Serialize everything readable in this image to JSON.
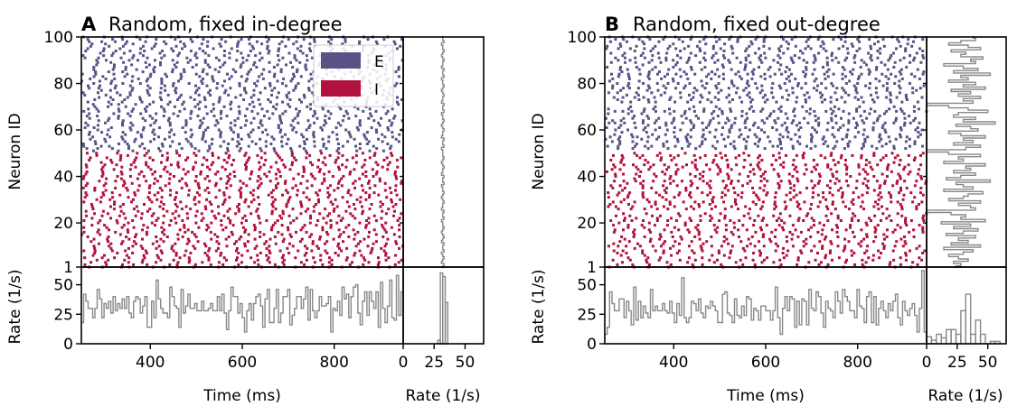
{
  "figure": {
    "colors": {
      "E": "#595287",
      "I": "#b1123d",
      "rate_line": "#888888"
    }
  },
  "chart_data": [
    {
      "type": "scatter",
      "panel": "A",
      "letter": "A",
      "title": "Random, fixed in-degree",
      "raster": {
        "xlabel": "Time (ms)",
        "ylabel": "Neuron ID",
        "xlim": [
          250,
          950
        ],
        "ylim": [
          1,
          100
        ],
        "xticks": [
          400,
          600,
          800
        ],
        "yticks": [
          1,
          20,
          40,
          60,
          80,
          100
        ],
        "populations": [
          {
            "name": "E",
            "neurons": [
              51,
              100
            ]
          },
          {
            "name": "I",
            "neurons": [
              1,
              50
            ]
          }
        ],
        "mean_rate_per_neuron": [
          32,
          33,
          31,
          32,
          33,
          32,
          31,
          33,
          32,
          32,
          33,
          31,
          32,
          33,
          32,
          31,
          32,
          33,
          32,
          32,
          31,
          33,
          32,
          32,
          33,
          31,
          32,
          32,
          33,
          32,
          31,
          32,
          33,
          32,
          32,
          31,
          33,
          32,
          32,
          33,
          31,
          32,
          32,
          33,
          32,
          31,
          32,
          33,
          32,
          32,
          32,
          31,
          33,
          32,
          32,
          33,
          31,
          32,
          32,
          33,
          32,
          31,
          32,
          33,
          32,
          32,
          31,
          33,
          32,
          32,
          33,
          31,
          32,
          32,
          33,
          32,
          31,
          32,
          33,
          32,
          32,
          31,
          33,
          32,
          32,
          33,
          31,
          32,
          32,
          33,
          32,
          31,
          32,
          33,
          32,
          32,
          31,
          33,
          32,
          32
        ]
      },
      "time_rate": {
        "ylabel": "Rate (1/s)",
        "ylim": [
          0,
          65
        ],
        "yticks": [
          0,
          25,
          50
        ],
        "bin_ms": 5,
        "values": [
          18,
          42,
          36,
          30,
          30,
          22,
          30,
          46,
          38,
          22,
          34,
          30,
          36,
          26,
          40,
          28,
          34,
          30,
          38,
          30,
          40,
          26,
          22,
          36,
          40,
          38,
          26,
          32,
          40,
          14,
          14,
          36,
          22,
          54,
          38,
          30,
          26,
          26,
          22,
          48,
          40,
          32,
          30,
          14,
          46,
          26,
          32,
          42,
          30,
          30,
          34,
          28,
          28,
          36,
          28,
          28,
          30,
          34,
          28,
          28,
          40,
          28,
          42,
          26,
          12,
          28,
          48,
          40,
          40,
          26,
          34,
          22,
          10,
          28,
          34,
          20,
          34,
          40,
          42,
          32,
          14,
          38,
          46,
          18,
          18,
          30,
          46,
          18,
          26,
          40,
          40,
          46,
          16,
          24,
          30,
          40,
          40,
          30,
          38,
          48,
          20,
          46,
          28,
          22,
          28,
          40,
          32,
          32,
          34,
          40,
          10,
          30,
          28,
          36,
          24,
          48,
          38,
          42,
          22,
          40,
          48,
          50,
          26,
          16,
          36,
          44,
          24,
          44,
          36,
          30,
          44,
          14,
          52,
          30,
          18,
          32,
          54,
          22,
          20,
          58,
          24,
          44
        ]
      },
      "rate_hist": {
        "xlabel": "Rate (1/s)",
        "xlim": [
          0,
          65
        ],
        "xticks": [
          0,
          25,
          50
        ],
        "bin_edges": [
          26,
          28,
          30,
          32,
          34,
          36,
          38
        ],
        "counts": [
          0,
          3,
          60,
          57,
          35,
          0
        ]
      }
    },
    {
      "type": "scatter",
      "panel": "B",
      "letter": "B",
      "title": "Random, fixed out-degree",
      "raster": {
        "xlabel": "Time (ms)",
        "ylabel": "Neuron ID",
        "xlim": [
          250,
          950
        ],
        "ylim": [
          1,
          100
        ],
        "xticks": [
          400,
          600,
          800
        ],
        "yticks": [
          1,
          20,
          40,
          60,
          80,
          100
        ],
        "populations": [
          {
            "name": "E",
            "neurons": [
              51,
              100
            ]
          },
          {
            "name": "I",
            "neurons": [
              1,
              50
            ]
          }
        ],
        "mean_rate_per_neuron": [
          24,
          28,
          22,
          34,
          26,
          18,
          30,
          38,
          14,
          44,
          20,
          34,
          26,
          40,
          16,
          30,
          42,
          22,
          36,
          12,
          48,
          28,
          32,
          20,
          0,
          40,
          36,
          26,
          44,
          18,
          30,
          34,
          46,
          14,
          38,
          30,
          24,
          52,
          16,
          28,
          40,
          22,
          36,
          32,
          48,
          14,
          30,
          26,
          44,
          18,
          0,
          32,
          44,
          22,
          38,
          30,
          48,
          28,
          18,
          42,
          36,
          24,
          56,
          30,
          40,
          22,
          26,
          50,
          34,
          18,
          0,
          38,
          30,
          44,
          26,
          36,
          20,
          48,
          30,
          40,
          18,
          34,
          28,
          52,
          22,
          42,
          30,
          14,
          40,
          36,
          46,
          28,
          32,
          20,
          44,
          34,
          18,
          28,
          40,
          38
        ]
      },
      "time_rate": {
        "ylabel": "Rate (1/s)",
        "ylim": [
          0,
          65
        ],
        "yticks": [
          0,
          25,
          50
        ],
        "bin_ms": 5,
        "values": [
          8,
          14,
          44,
          34,
          28,
          28,
          38,
          38,
          22,
          36,
          28,
          16,
          48,
          20,
          36,
          22,
          32,
          26,
          22,
          46,
          28,
          32,
          28,
          28,
          34,
          28,
          26,
          36,
          26,
          18,
          34,
          24,
          56,
          22,
          18,
          22,
          36,
          34,
          28,
          38,
          26,
          22,
          32,
          30,
          36,
          32,
          28,
          18,
          18,
          42,
          44,
          26,
          24,
          18,
          38,
          24,
          22,
          32,
          24,
          40,
          38,
          20,
          30,
          28,
          20,
          32,
          32,
          28,
          28,
          20,
          28,
          48,
          22,
          8,
          30,
          40,
          28,
          40,
          38,
          14,
          36,
          16,
          38,
          36,
          16,
          46,
          30,
          28,
          44,
          40,
          26,
          14,
          36,
          30,
          28,
          22,
          44,
          36,
          26,
          46,
          40,
          36,
          28,
          28,
          22,
          46,
          32,
          30,
          18,
          40,
          44,
          18,
          40,
          16,
          30,
          36,
          28,
          22,
          34,
          28,
          36,
          42,
          22,
          16,
          36,
          28,
          24,
          30,
          34,
          24,
          10,
          30,
          62,
          10
        ]
      },
      "rate_hist": {
        "xlabel": "Rate (1/s)",
        "xlim": [
          0,
          65
        ],
        "xticks": [
          0,
          25,
          50
        ],
        "bin_edges": [
          0,
          4,
          8,
          12,
          16,
          20,
          24,
          28,
          32,
          36,
          40,
          44,
          48,
          52,
          56,
          60
        ],
        "counts": [
          6,
          3,
          8,
          5,
          12,
          12,
          8,
          28,
          42,
          8,
          20,
          8,
          0,
          2,
          2
        ]
      }
    }
  ],
  "legend": {
    "entries": [
      {
        "label": "E",
        "color_key": "E"
      },
      {
        "label": "I",
        "color_key": "I"
      }
    ]
  }
}
